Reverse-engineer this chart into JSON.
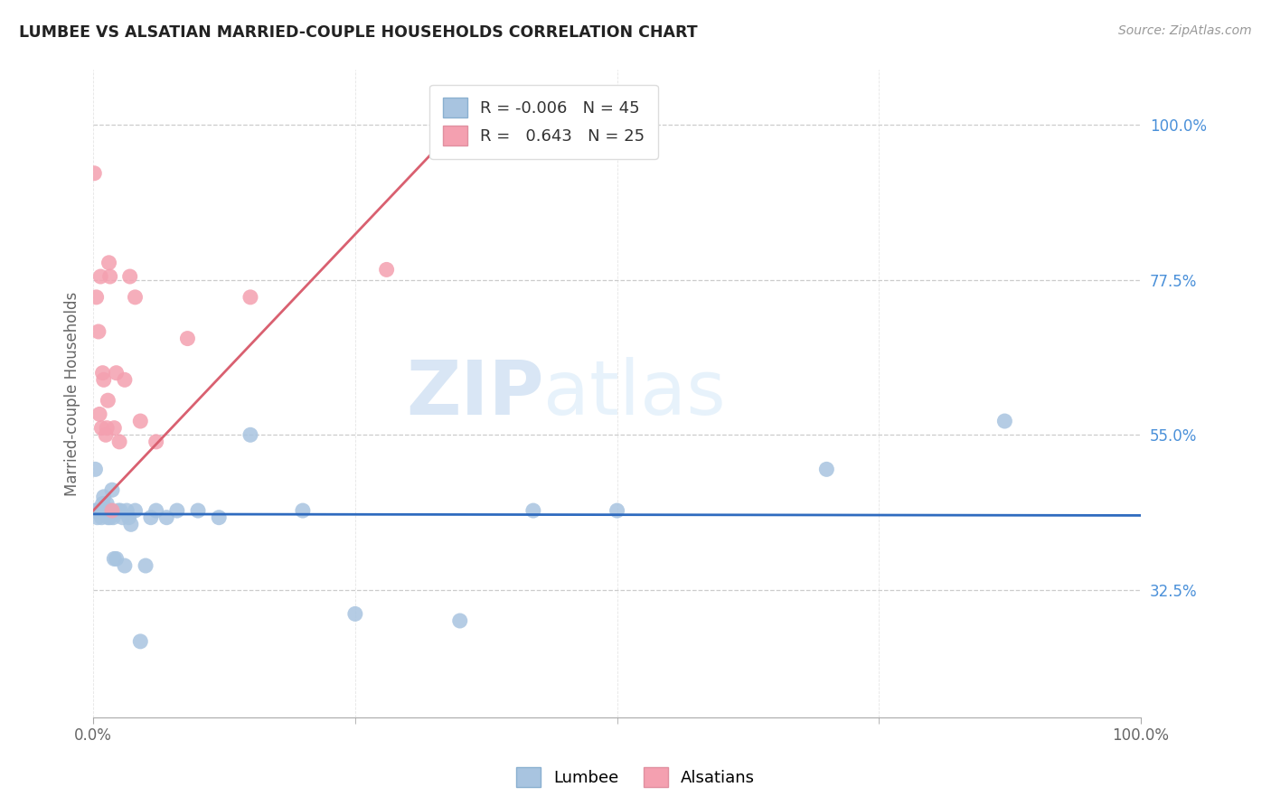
{
  "title": "LUMBEE VS ALSATIAN MARRIED-COUPLE HOUSEHOLDS CORRELATION CHART",
  "source": "Source: ZipAtlas.com",
  "ylabel": "Married-couple Households",
  "watermark_zip": "ZIP",
  "watermark_atlas": "atlas",
  "lumbee_R": "-0.006",
  "lumbee_N": "45",
  "alsatian_R": "0.643",
  "alsatian_N": "25",
  "lumbee_color": "#a8c4e0",
  "alsatian_color": "#f4a0b0",
  "lumbee_line_color": "#2f6bbf",
  "alsatian_line_color": "#d96070",
  "background_color": "#ffffff",
  "grid_color": "#cccccc",
  "ytick_vals": [
    1.0,
    0.775,
    0.55,
    0.325
  ],
  "ytick_labels": [
    "100.0%",
    "77.5%",
    "55.0%",
    "32.5%"
  ],
  "xtick_vals": [
    0.0,
    1.0
  ],
  "xtick_labels": [
    "0.0%",
    "100.0%"
  ],
  "xlim": [
    0.0,
    1.0
  ],
  "ylim": [
    0.14,
    1.08
  ],
  "lumbee_trend_x": [
    0.0,
    1.0
  ],
  "lumbee_trend_y": [
    0.435,
    0.433
  ],
  "alsatian_trend_x": [
    0.0,
    0.38
  ],
  "alsatian_trend_y": [
    0.44,
    1.05
  ],
  "lumbee_x": [
    0.001,
    0.002,
    0.003,
    0.004,
    0.005,
    0.006,
    0.007,
    0.008,
    0.009,
    0.01,
    0.011,
    0.012,
    0.013,
    0.014,
    0.015,
    0.016,
    0.017,
    0.018,
    0.019,
    0.02,
    0.022,
    0.024,
    0.026,
    0.028,
    0.03,
    0.032,
    0.034,
    0.036,
    0.04,
    0.045,
    0.05,
    0.055,
    0.06,
    0.07,
    0.08,
    0.1,
    0.12,
    0.15,
    0.2,
    0.25,
    0.35,
    0.42,
    0.5,
    0.7,
    0.87
  ],
  "lumbee_y": [
    0.44,
    0.5,
    0.44,
    0.43,
    0.44,
    0.44,
    0.44,
    0.43,
    0.45,
    0.46,
    0.44,
    0.44,
    0.45,
    0.43,
    0.44,
    0.43,
    0.44,
    0.47,
    0.43,
    0.37,
    0.37,
    0.44,
    0.44,
    0.43,
    0.36,
    0.44,
    0.43,
    0.42,
    0.44,
    0.25,
    0.36,
    0.43,
    0.44,
    0.43,
    0.44,
    0.44,
    0.43,
    0.55,
    0.44,
    0.29,
    0.28,
    0.44,
    0.44,
    0.5,
    0.57
  ],
  "alsatian_x": [
    0.001,
    0.003,
    0.005,
    0.006,
    0.007,
    0.008,
    0.009,
    0.01,
    0.012,
    0.013,
    0.014,
    0.015,
    0.016,
    0.018,
    0.02,
    0.022,
    0.025,
    0.03,
    0.035,
    0.04,
    0.045,
    0.06,
    0.09,
    0.15,
    0.28
  ],
  "alsatian_y": [
    0.93,
    0.75,
    0.7,
    0.58,
    0.78,
    0.56,
    0.64,
    0.63,
    0.55,
    0.56,
    0.6,
    0.8,
    0.78,
    0.44,
    0.56,
    0.64,
    0.54,
    0.63,
    0.78,
    0.75,
    0.57,
    0.54,
    0.69,
    0.75,
    0.79
  ]
}
